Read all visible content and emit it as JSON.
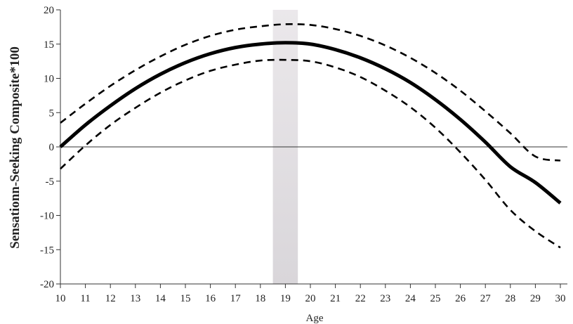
{
  "chart_data": {
    "type": "line",
    "xlabel": "Age",
    "ylabel": "Sensationn-Seeking Composite*100",
    "xlim": [
      10,
      30
    ],
    "ylim": [
      -20,
      20
    ],
    "x_ticks": [
      10,
      11,
      12,
      13,
      14,
      15,
      16,
      17,
      18,
      19,
      20,
      21,
      22,
      23,
      24,
      25,
      26,
      27,
      28,
      29,
      30
    ],
    "y_ticks": [
      -20,
      -15,
      -10,
      -5,
      0,
      5,
      10,
      15,
      20
    ],
    "grid": false,
    "legend": "none",
    "highlight_band": {
      "x_range": [
        18.5,
        19.5
      ],
      "color": "#d9d6da"
    },
    "series": [
      {
        "style": "solid",
        "color": "#000000",
        "x": [
          10,
          11,
          12,
          13,
          14,
          15,
          16,
          17,
          18,
          19,
          20,
          21,
          22,
          23,
          24,
          25,
          26,
          27,
          28,
          29,
          30
        ],
        "values": [
          0,
          3.2,
          6.0,
          8.5,
          10.6,
          12.3,
          13.6,
          14.5,
          15.0,
          15.2,
          15.0,
          14.2,
          13.0,
          11.4,
          9.4,
          6.9,
          4.0,
          0.7,
          -2.9,
          -5.2,
          -8.2
        ]
      },
      {
        "style": "dashed",
        "color": "#000000",
        "x": [
          10,
          11,
          12,
          13,
          14,
          15,
          16,
          17,
          18,
          19,
          20,
          21,
          22,
          23,
          24,
          25,
          26,
          27,
          28,
          29,
          30
        ],
        "values": [
          3.5,
          6.3,
          8.9,
          11.2,
          13.2,
          14.9,
          16.2,
          17.1,
          17.6,
          17.9,
          17.8,
          17.2,
          16.2,
          14.8,
          13.0,
          10.8,
          8.2,
          5.2,
          2.0,
          -1.4,
          -2.0
        ]
      },
      {
        "style": "dashed",
        "color": "#000000",
        "x": [
          10,
          11,
          12,
          13,
          14,
          15,
          16,
          17,
          18,
          19,
          20,
          21,
          22,
          23,
          24,
          25,
          26,
          27,
          28,
          29,
          30
        ],
        "values": [
          -3.2,
          0.2,
          3.2,
          5.7,
          7.9,
          9.7,
          11.1,
          12.0,
          12.6,
          12.7,
          12.5,
          11.6,
          10.2,
          8.2,
          5.8,
          2.8,
          -0.8,
          -4.8,
          -9.2,
          -12.3,
          -14.7
        ]
      }
    ]
  }
}
